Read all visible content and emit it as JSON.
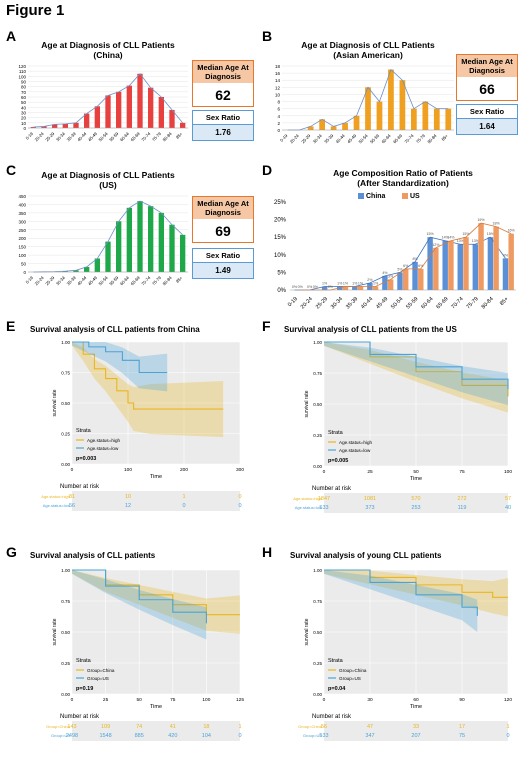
{
  "figure_title": "Figure 1",
  "panels": {
    "A": {
      "letter": "A",
      "median_label": "Median Age At Diagnosis",
      "median_value": "62",
      "ratio_label": "Sex Ratio",
      "ratio_value": "1.76"
    },
    "B": {
      "letter": "B",
      "median_label": "Median Age At Diagnosis",
      "median_value": "66",
      "ratio_label": "Sex Ratio",
      "ratio_value": "1.64"
    },
    "C": {
      "letter": "C",
      "median_label": "Median Age At Diagnosis",
      "median_value": "69",
      "ratio_label": "Sex Ratio",
      "ratio_value": "1.49"
    },
    "D": {
      "letter": "D"
    },
    "E": {
      "letter": "E"
    },
    "F": {
      "letter": "F"
    },
    "G": {
      "letter": "G"
    },
    "H": {
      "letter": "H"
    }
  },
  "colors": {
    "china_red": "#e8403f",
    "asian_orange": "#f0a020",
    "us_green": "#1fa84a",
    "trend_line": "#6e8fc8",
    "d_china": "#5b8fd6",
    "d_us": "#ee9a62",
    "km_high": "#e9b620",
    "km_low": "#4aa3d8"
  },
  "chart_data": [
    {
      "id": "A",
      "type": "bar",
      "title": "Age at Diagnosis of CLL Patients",
      "subtitle": "(China)",
      "categories": [
        "0-19",
        "20-24",
        "25-29",
        "30-34",
        "35-39",
        "40-44",
        "45-49",
        "50-54",
        "55-59",
        "60-64",
        "65-69",
        "70-74",
        "75-79",
        "80-84",
        "85+"
      ],
      "values": [
        2,
        3,
        7,
        8,
        10,
        28,
        42,
        63,
        70,
        82,
        105,
        78,
        60,
        35,
        10
      ],
      "ylim": [
        0,
        120
      ],
      "yticks": [
        0,
        10,
        20,
        30,
        40,
        50,
        60,
        70,
        80,
        90,
        100,
        110,
        120
      ]
    },
    {
      "id": "B",
      "type": "bar",
      "title": "Age at Diagnosis of CLL Patients",
      "subtitle": "(Asian American)",
      "categories": [
        "0-19",
        "20-24",
        "25-29",
        "30-34",
        "35-39",
        "40-44",
        "45-49",
        "50-54",
        "55-59",
        "60-64",
        "65-69",
        "70-74",
        "75-79",
        "80-84",
        "85+"
      ],
      "values": [
        0,
        0,
        1,
        3,
        1,
        2,
        4,
        12,
        8,
        17,
        14,
        6,
        8,
        6,
        6
      ],
      "ylim": [
        0,
        18
      ],
      "yticks": [
        0,
        2,
        4,
        6,
        8,
        10,
        12,
        14,
        16,
        18
      ]
    },
    {
      "id": "C",
      "type": "bar",
      "title": "Age at Diagnosis of CLL Patients",
      "subtitle": "(US)",
      "categories": [
        "0-19",
        "20-24",
        "25-29",
        "30-34",
        "35-39",
        "40-44",
        "45-49",
        "50-54",
        "55-59",
        "60-64",
        "65-69",
        "70-74",
        "75-79",
        "80-84",
        "85+"
      ],
      "values": [
        0,
        1,
        2,
        5,
        10,
        30,
        80,
        180,
        300,
        380,
        420,
        390,
        350,
        280,
        220
      ],
      "ylim": [
        0,
        450
      ],
      "yticks": [
        0,
        50,
        100,
        150,
        200,
        250,
        300,
        350,
        400,
        450
      ]
    },
    {
      "id": "D",
      "type": "bar",
      "title": "Age Composition Ratio of Patients",
      "subtitle": "(After Standardization)",
      "categories": [
        "0-19",
        "20-24",
        "25-29",
        "30-34",
        "35-39",
        "40-44",
        "45-49",
        "50-54",
        "55-59",
        "60-64",
        "65-69",
        "70-74",
        "75-79",
        "80-84",
        "85+"
      ],
      "series": [
        {
          "name": "China",
          "values": [
            0,
            0,
            1,
            1,
            1,
            2,
            4,
            5,
            8,
            15,
            14,
            13,
            13,
            15,
            9
          ],
          "labels": [
            "0%",
            "0%",
            "1%",
            "1%",
            "1%",
            "2%",
            "4%",
            "5%",
            "8%",
            "15%",
            "14%",
            "13%",
            "13%",
            "15%",
            "9%"
          ]
        },
        {
          "name": "US",
          "values": [
            0,
            0,
            0,
            1,
            1,
            1,
            3,
            6,
            6,
            12,
            14,
            15,
            19,
            18,
            16
          ],
          "labels": [
            "0%",
            "0%",
            "0%",
            "1%",
            "1%",
            "1%",
            "3%",
            "6%",
            "6%",
            "12%",
            "14%",
            "15%",
            "19%",
            "18%",
            "16%"
          ]
        }
      ],
      "ylim": [
        0,
        25
      ],
      "yticks": [
        "0%",
        "5%",
        "10%",
        "15%",
        "20%",
        "25%"
      ],
      "legend": "top"
    },
    {
      "id": "E",
      "type": "line",
      "title": "Survival analysis of CLL patients from China",
      "ylabel": "survival rate",
      "xlabel": "Time",
      "xlim": [
        0,
        300
      ],
      "xticks": [
        0,
        100,
        200,
        300
      ],
      "yticks": [
        "0.00",
        "0.25",
        "0.50",
        "0.75",
        "1.00"
      ],
      "strata_title": "Strata",
      "series": [
        {
          "name": "Age.status=high",
          "x": [
            0,
            20,
            40,
            60,
            80,
            100,
            110,
            140,
            270
          ],
          "y": [
            1.0,
            0.9,
            0.78,
            0.7,
            0.6,
            0.5,
            0.45,
            0.45,
            0.45
          ]
        },
        {
          "name": "Age.status=low",
          "x": [
            0,
            30,
            60,
            90,
            120,
            170
          ],
          "y": [
            1.0,
            0.96,
            0.92,
            0.85,
            0.75,
            0.75
          ]
        }
      ],
      "pvalue": "p=0.003",
      "risk_title": "Number at risk",
      "risk_table": {
        "times": [
          0,
          100,
          200,
          300
        ],
        "rows": [
          {
            "label": "Age.status=high",
            "values": [
              "81",
              "10",
              "1",
              "0"
            ]
          },
          {
            "label": "Age.status=low",
            "values": [
              "56",
              "12",
              "0",
              "0"
            ]
          }
        ]
      }
    },
    {
      "id": "F",
      "type": "line",
      "title": "Survival analysis of CLL patients from the US",
      "ylabel": "survival rate",
      "xlabel": "Time",
      "xlim": [
        0,
        100
      ],
      "xticks": [
        0,
        25,
        50,
        75,
        100
      ],
      "yticks": [
        "0.00",
        "0.25",
        "0.50",
        "0.75",
        "1.00"
      ],
      "strata_title": "Strata",
      "series": [
        {
          "name": "Age.status=high",
          "x": [
            0,
            25,
            50,
            75,
            100
          ],
          "y": [
            1.0,
            0.88,
            0.76,
            0.65,
            0.56
          ]
        },
        {
          "name": "Age.status=low",
          "x": [
            0,
            25,
            50,
            75,
            100
          ],
          "y": [
            1.0,
            0.9,
            0.8,
            0.7,
            0.62
          ]
        }
      ],
      "pvalue": "p=0.005",
      "risk_title": "Number at risk",
      "risk_table": {
        "times": [
          0,
          25,
          50,
          75,
          100
        ],
        "rows": [
          {
            "label": "Age.status=high",
            "values": [
              "1847",
              "1081",
              "570",
              "272",
              "57"
            ]
          },
          {
            "label": "Age.status=low",
            "values": [
              "533",
              "373",
              "253",
              "119",
              "40"
            ]
          }
        ]
      }
    },
    {
      "id": "G",
      "type": "line",
      "title": "Survival analysis of CLL patients",
      "ylabel": "survival rate",
      "xlabel": "Time",
      "xlim": [
        0,
        125
      ],
      "xticks": [
        0,
        25,
        50,
        75,
        100,
        125
      ],
      "yticks": [
        "0.00",
        "0.25",
        "0.50",
        "0.75",
        "1.00"
      ],
      "strata_title": "Strata",
      "series": [
        {
          "name": "Group=China",
          "x": [
            0,
            25,
            50,
            75,
            100,
            125
          ],
          "y": [
            1.0,
            0.88,
            0.8,
            0.72,
            0.64,
            0.64
          ]
        },
        {
          "name": "Group=US",
          "x": [
            0,
            25,
            50,
            75,
            100
          ],
          "y": [
            1.0,
            0.87,
            0.76,
            0.66,
            0.57
          ]
        }
      ],
      "pvalue": "p=0.19",
      "risk_title": "Number at risk",
      "risk_table": {
        "times": [
          0,
          25,
          50,
          75,
          100,
          125
        ],
        "rows": [
          {
            "label": "Group=China",
            "values": [
              "143",
              "109",
              "74",
              "41",
              "18",
              "1"
            ]
          },
          {
            "label": "Group=US",
            "values": [
              "2498",
              "1548",
              "885",
              "420",
              "104",
              "0"
            ]
          }
        ]
      }
    },
    {
      "id": "H",
      "type": "line",
      "title": "Survival analysis of young CLL patients",
      "ylabel": "survival rate",
      "xlabel": "Time",
      "xlim": [
        0,
        120
      ],
      "xticks": [
        0,
        30,
        60,
        90,
        120
      ],
      "yticks": [
        "0.00",
        "0.25",
        "0.50",
        "0.75",
        "1.00"
      ],
      "strata_title": "Strata",
      "series": [
        {
          "name": "Group=China",
          "x": [
            0,
            30,
            60,
            90,
            110,
            120
          ],
          "y": [
            1.0,
            0.94,
            0.88,
            0.82,
            0.78,
            0.78
          ]
        },
        {
          "name": "Group=US",
          "x": [
            0,
            30,
            60,
            90,
            100
          ],
          "y": [
            1.0,
            0.9,
            0.8,
            0.7,
            0.63
          ]
        }
      ],
      "pvalue": "p=0.04",
      "risk_title": "Number at risk",
      "risk_table": {
        "times": [
          0,
          30,
          60,
          90,
          120
        ],
        "rows": [
          {
            "label": "Group=China",
            "values": [
              "56",
              "47",
              "33",
              "17",
              "1"
            ]
          },
          {
            "label": "Group=US",
            "values": [
              "533",
              "347",
              "207",
              "75",
              "0"
            ]
          }
        ]
      }
    }
  ]
}
